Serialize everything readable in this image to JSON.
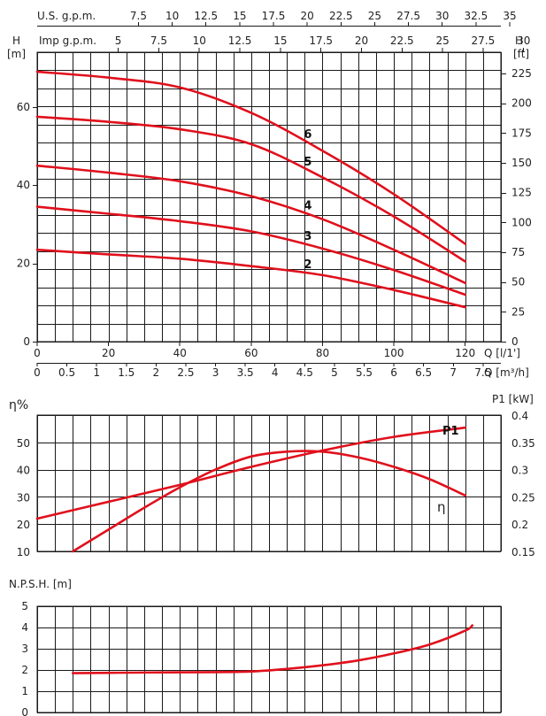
{
  "colors": {
    "curve": "#e0101c",
    "grid": "#1a1a1a",
    "text": "#222222"
  },
  "chart_data": [
    {
      "type": "line",
      "title": "",
      "top_scales": [
        {
          "label": "U.S. g.p.m.",
          "ticks": [
            "7.5",
            "10",
            "12.5",
            "15",
            "17.5",
            "20",
            "22.5",
            "25",
            "27.5",
            "30",
            "32.5",
            "35"
          ]
        },
        {
          "label": "Imp g.p.m.",
          "ticks": [
            "5",
            "7.5",
            "10",
            "12.5",
            "15",
            "17.5",
            "20",
            "22.5",
            "25",
            "27.5",
            "30"
          ]
        }
      ],
      "xlabel": "Q [l/1']",
      "xlim": [
        0,
        130
      ],
      "xticks": [
        "0",
        "20",
        "40",
        "60",
        "80",
        "100",
        "120"
      ],
      "x2label": "Q [m³/h]",
      "x2ticks": [
        "0",
        "0.5",
        "1",
        "1.5",
        "2",
        "2.5",
        "3",
        "3.5",
        "4",
        "4.5",
        "5",
        "5.5",
        "6",
        "6.5",
        "7",
        "7.5"
      ],
      "ylabel_left": "H",
      "ylabel_left_unit": "[m]",
      "ylim": [
        0,
        74
      ],
      "yticks_left": [
        "0",
        "20",
        "40",
        "60"
      ],
      "ylabel_right": "H",
      "ylabel_right_unit": "[ft]",
      "yticks_right": [
        "0",
        "25",
        "50",
        "75",
        "100",
        "125",
        "150",
        "175",
        "200",
        "225"
      ],
      "grid": true,
      "series": [
        {
          "name": "2",
          "x": [
            0,
            20,
            40,
            60,
            80,
            100,
            120
          ],
          "y": [
            23.5,
            22.3,
            21.2,
            19.3,
            17.0,
            13.2,
            8.8
          ]
        },
        {
          "name": "3",
          "x": [
            0,
            20,
            40,
            60,
            80,
            100,
            120
          ],
          "y": [
            34.5,
            32.7,
            30.8,
            28.2,
            23.8,
            18.3,
            12.0
          ]
        },
        {
          "name": "4",
          "x": [
            0,
            20,
            40,
            60,
            80,
            100,
            120
          ],
          "y": [
            45.0,
            43.2,
            41.0,
            37.2,
            31.3,
            23.5,
            15.0
          ]
        },
        {
          "name": "5",
          "x": [
            0,
            20,
            40,
            60,
            80,
            100,
            120
          ],
          "y": [
            57.5,
            56.2,
            54.3,
            50.5,
            42.0,
            32.0,
            20.5
          ]
        },
        {
          "name": "6",
          "x": [
            0,
            20,
            40,
            60,
            80,
            100,
            120
          ],
          "y": [
            69.0,
            67.5,
            65.0,
            58.5,
            48.8,
            37.7,
            25.0
          ]
        }
      ]
    },
    {
      "type": "line",
      "title": "",
      "xlim": [
        0,
        130
      ],
      "ylabel_left": "η%",
      "ylim": [
        10,
        60
      ],
      "yticks_left": [
        "10",
        "20",
        "30",
        "40",
        "50"
      ],
      "ylabel_right": "P1 [kW]",
      "y2lim": [
        0.15,
        0.4
      ],
      "yticks_right": [
        "0.15",
        "0.2",
        "0.25",
        "0.3",
        "0.35",
        "0.4"
      ],
      "grid": true,
      "series": [
        {
          "name": "η",
          "axis": "left",
          "x": [
            10,
            20,
            30,
            40,
            50,
            60,
            70,
            80,
            90,
            100,
            110,
            120
          ],
          "y": [
            10,
            18,
            26,
            33.5,
            40,
            44.8,
            46.6,
            46.6,
            44.5,
            41,
            36.5,
            30.5
          ]
        },
        {
          "name": "P1",
          "axis": "right",
          "x": [
            0,
            20,
            40,
            60,
            80,
            100,
            120
          ],
          "y": [
            0.21,
            0.241,
            0.272,
            0.305,
            0.335,
            0.36,
            0.377
          ]
        }
      ]
    },
    {
      "type": "line",
      "title": "",
      "ylabel": "N.P.S.H. [m]",
      "xlim": [
        0,
        130
      ],
      "ylim": [
        0,
        5
      ],
      "yticks": [
        "0",
        "1",
        "2",
        "3",
        "4",
        "5"
      ],
      "grid": true,
      "series": [
        {
          "x": [
            10,
            30,
            50,
            60,
            70,
            80,
            90,
            100,
            110,
            120,
            122
          ],
          "y": [
            1.85,
            1.88,
            1.9,
            1.93,
            2.05,
            2.22,
            2.45,
            2.78,
            3.2,
            3.85,
            4.1
          ]
        }
      ]
    }
  ]
}
